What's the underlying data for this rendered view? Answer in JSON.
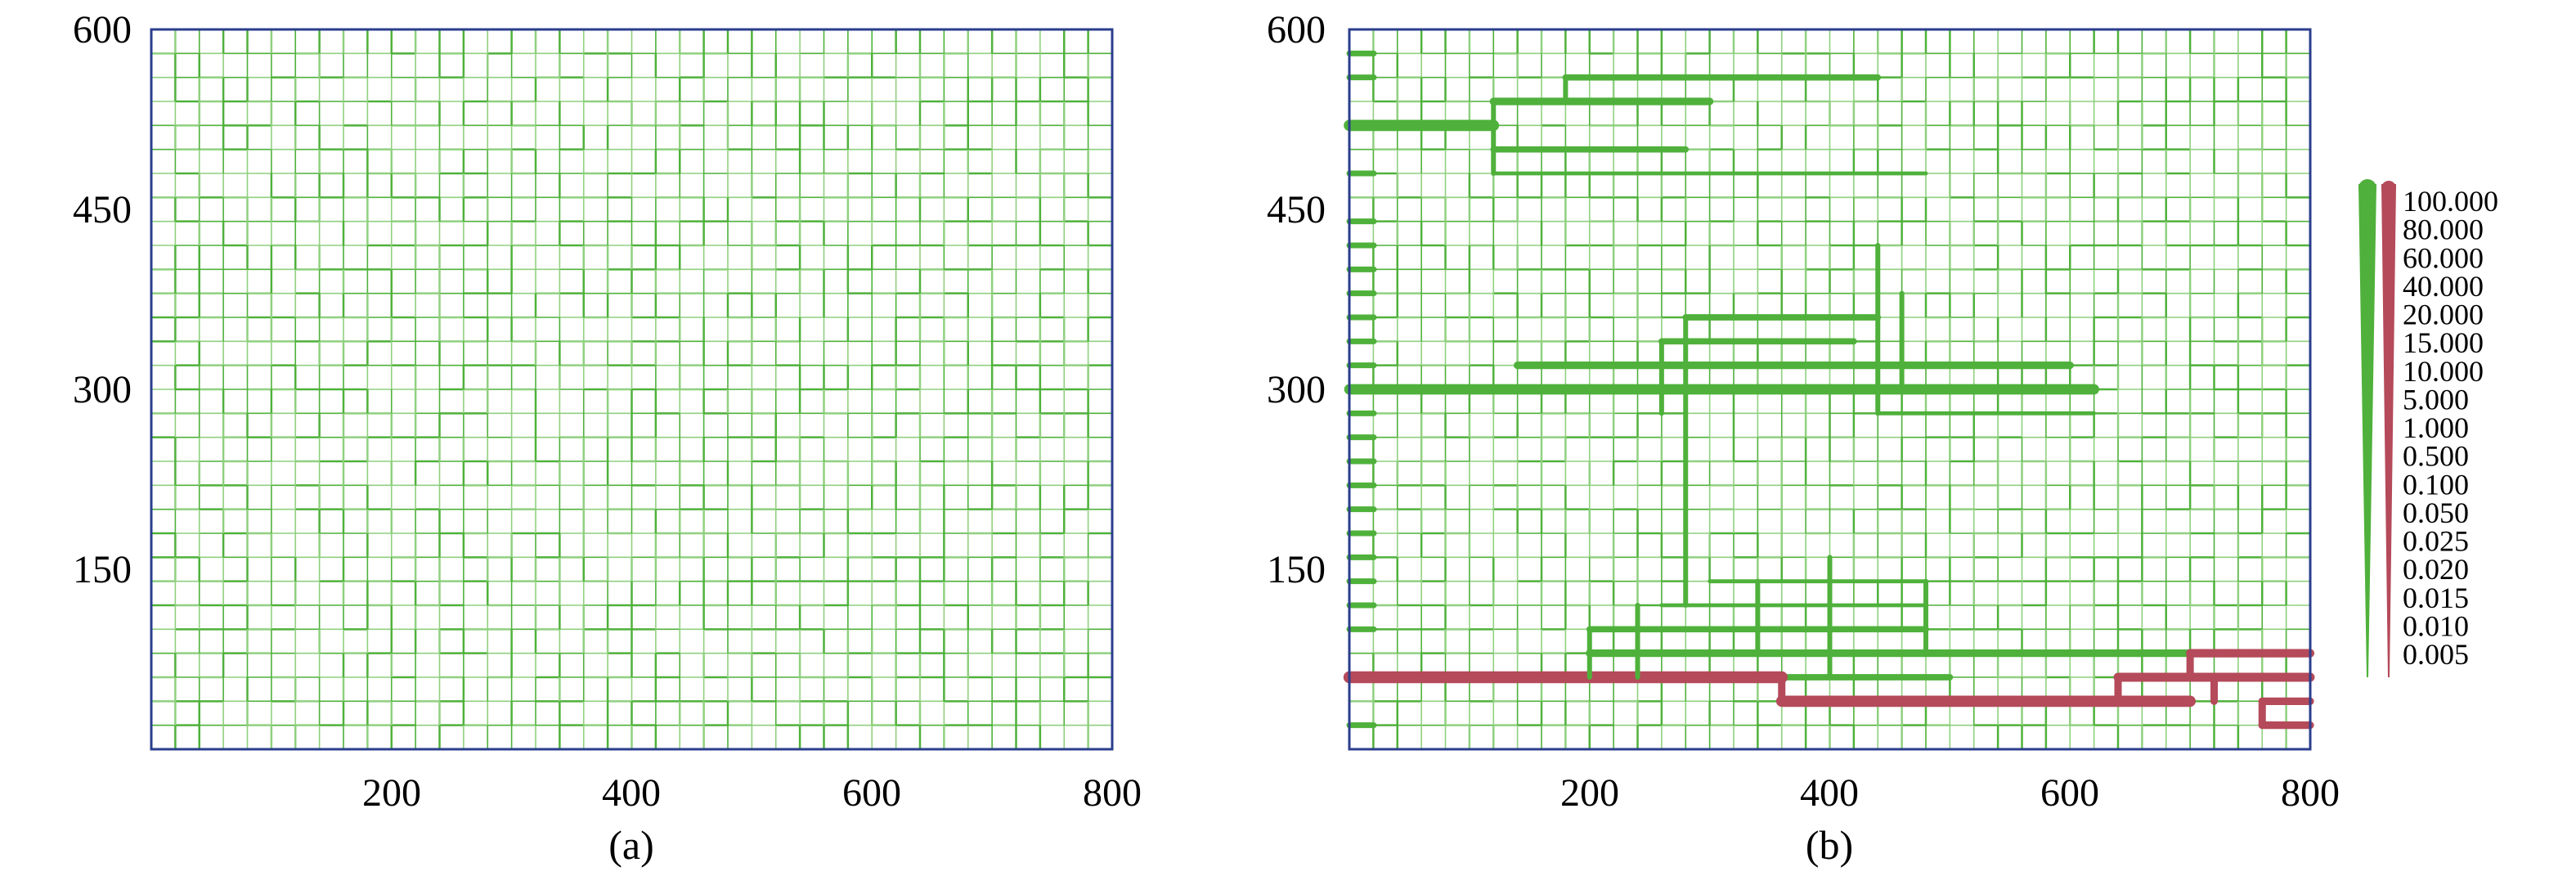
{
  "colors": {
    "grid": "#4fb13b",
    "grid_light": "#8fd07f",
    "flow_green": "#4fb13b",
    "flow_red": "#b44a5a",
    "frame": "#2b3e8c"
  },
  "panels": [
    {
      "caption": "(a)",
      "x_ticks": [
        "200",
        "400",
        "600",
        "800"
      ],
      "y_ticks": [
        "600",
        "450",
        "300",
        "150"
      ]
    },
    {
      "caption": "(b)",
      "x_ticks": [
        "200",
        "400",
        "600",
        "800"
      ],
      "y_ticks": [
        "600",
        "450",
        "300",
        "150"
      ]
    }
  ],
  "legend": {
    "values": [
      "100.000",
      "80.000",
      "60.000",
      "40.000",
      "20.000",
      "15.000",
      "10.000",
      "5.000",
      "1.000",
      "0.500",
      "0.100",
      "0.050",
      "0.025",
      "0.020",
      "0.015",
      "0.010",
      "0.005"
    ]
  },
  "chart_data": [
    {
      "type": "network",
      "panel": "(a)",
      "xlim": [
        0,
        800
      ],
      "ylim": [
        0,
        600
      ],
      "x_ticks": [
        200,
        400,
        600,
        800
      ],
      "y_ticks": [
        150,
        300,
        450,
        600
      ],
      "grid_spacing": 20
    },
    {
      "type": "network",
      "panel": "(b)",
      "xlim": [
        0,
        800
      ],
      "ylim": [
        0,
        600
      ],
      "x_ticks": [
        200,
        400,
        600,
        800
      ],
      "y_ticks": [
        150,
        300,
        450,
        600
      ],
      "grid_spacing": 20,
      "flow_paths_green": [
        {
          "y": 520,
          "x": [
            0,
            120
          ],
          "flow": 60
        },
        {
          "y": 540,
          "x": [
            120,
            300
          ],
          "flow": 10
        },
        {
          "y": 560,
          "x": [
            180,
            440
          ],
          "flow": 5
        },
        {
          "y": 500,
          "x": [
            120,
            280
          ],
          "flow": 5
        },
        {
          "y": 480,
          "x": [
            120,
            480
          ],
          "flow": 1
        },
        {
          "y": 300,
          "x": [
            0,
            620
          ],
          "flow": 40
        },
        {
          "y": 320,
          "x": [
            140,
            600
          ],
          "flow": 10
        },
        {
          "y": 340,
          "x": [
            260,
            420
          ],
          "flow": 5
        },
        {
          "y": 360,
          "x": [
            280,
            440
          ],
          "flow": 5
        },
        {
          "y": 280,
          "x": [
            440,
            620
          ],
          "flow": 1
        },
        {
          "y": 80,
          "x": [
            200,
            800
          ],
          "flow": 10
        },
        {
          "y": 100,
          "x": [
            200,
            480
          ],
          "flow": 5
        },
        {
          "y": 60,
          "x": [
            240,
            500
          ],
          "flow": 5
        },
        {
          "y": 120,
          "x": [
            260,
            480
          ],
          "flow": 1
        },
        {
          "y": 140,
          "x": [
            300,
            480
          ],
          "flow": 1
        }
      ],
      "flow_paths_red": [
        {
          "y": 60,
          "x": [
            0,
            360
          ],
          "flow": 80
        },
        {
          "y": 40,
          "x": [
            360,
            700
          ],
          "flow": 60
        },
        {
          "y": 60,
          "x": [
            640,
            800
          ],
          "flow": 20
        },
        {
          "y": 80,
          "x": [
            700,
            800
          ],
          "flow": 15
        },
        {
          "y": 40,
          "x": [
            760,
            800
          ],
          "flow": 10
        },
        {
          "y": 20,
          "x": [
            760,
            800
          ],
          "flow": 10
        }
      ]
    }
  ]
}
